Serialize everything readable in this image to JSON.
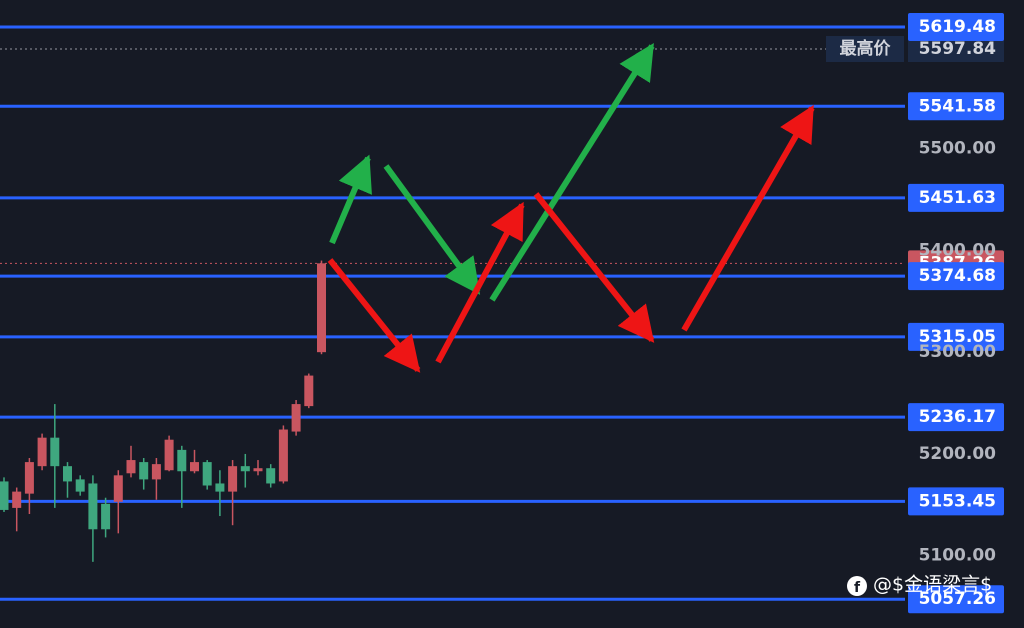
{
  "chart_data": {
    "type": "candlestick",
    "categories": [
      null,
      null,
      null,
      null,
      null,
      null,
      null,
      null,
      null,
      null,
      null,
      null,
      null,
      null,
      null,
      null,
      null,
      null,
      null,
      null,
      null,
      null,
      null,
      null,
      null,
      null
    ],
    "open": [
      5173,
      5147,
      5161,
      5188,
      5216,
      5188,
      5175,
      5171,
      5151,
      5153,
      5181,
      5192,
      5175,
      5184,
      5204,
      5183,
      5192,
      5171,
      5163,
      5188,
      5183,
      5186,
      5173,
      5222,
      5247,
      5300
    ],
    "high": [
      5177,
      5167,
      5196,
      5220,
      5249,
      5192,
      5179,
      5179,
      5157,
      5184,
      5208,
      5196,
      5196,
      5218,
      5208,
      5204,
      5194,
      5184,
      5194,
      5200,
      5194,
      5190,
      5228,
      5253,
      5279,
      5390
    ],
    "low": [
      5143,
      5124,
      5141,
      5184,
      5147,
      5157,
      5159,
      5094,
      5118,
      5122,
      5177,
      5165,
      5155,
      5183,
      5147,
      5181,
      5165,
      5139,
      5130,
      5167,
      5179,
      5167,
      5171,
      5218,
      5245,
      5298
    ],
    "close": [
      5145,
      5163,
      5192,
      5216,
      5188,
      5173,
      5163,
      5126,
      5126,
      5179,
      5194,
      5175,
      5190,
      5214,
      5183,
      5192,
      5169,
      5163,
      5188,
      5183,
      5186,
      5171,
      5224,
      5249,
      5277,
      5387.26
    ],
    "up_color": "#c95660",
    "down_color": "#3fa77f",
    "ylim": [
      5029,
      5646
    ],
    "yticks": [
      {
        "value": 5100,
        "label": "5100.00"
      },
      {
        "value": 5200,
        "label": "5200.00"
      },
      {
        "value": 5300,
        "label": "5300.00"
      },
      {
        "value": 5400,
        "label": "5400.00"
      },
      {
        "value": 5500,
        "label": "5500.00"
      }
    ],
    "levels": [
      5619.48,
      5541.58,
      5451.63,
      5374.68,
      5315.05,
      5236.17,
      5153.45,
      5057.26
    ],
    "level_color": "#2962ff",
    "high_marker": {
      "label": "最高价",
      "value": 5597.84
    },
    "last_price": 5387.26,
    "watermark": "@$金语梁言$"
  }
}
